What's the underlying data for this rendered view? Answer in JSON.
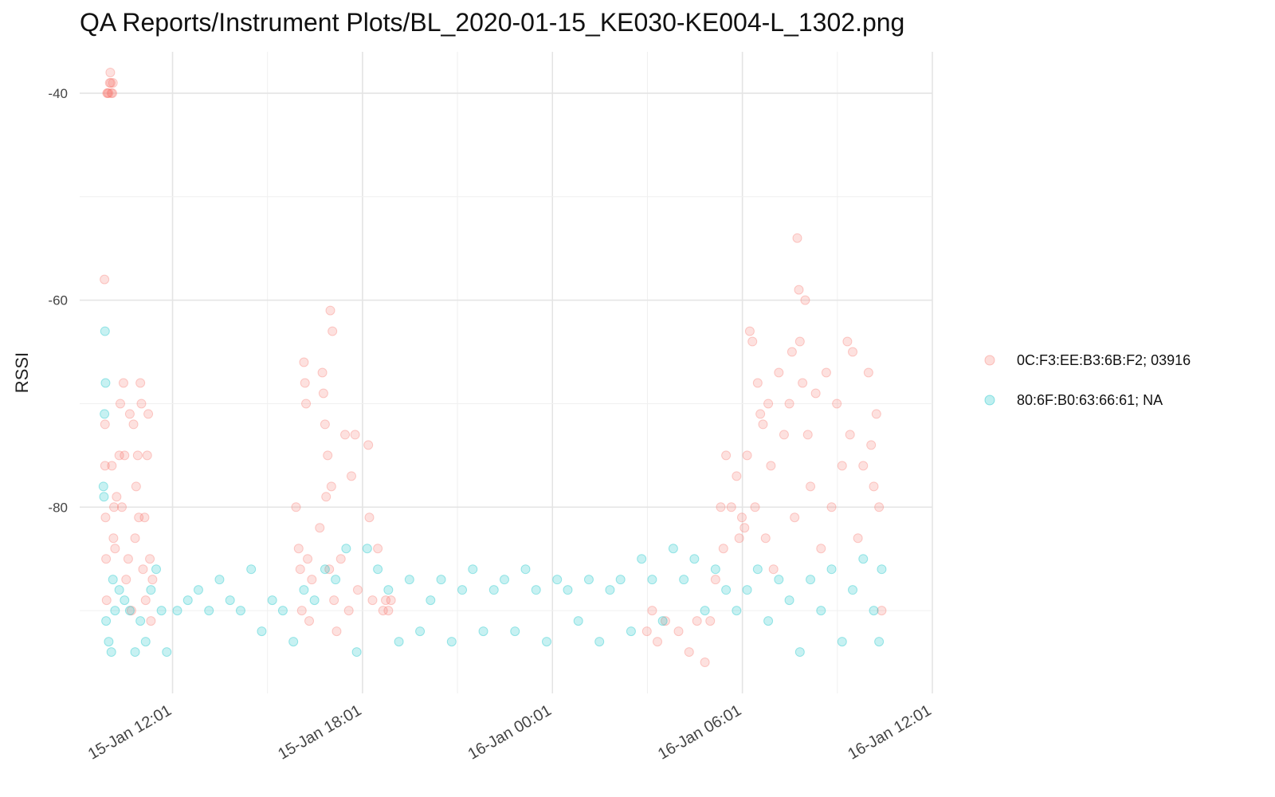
{
  "title": "QA Reports/Instrument Plots/BL_2020-01-15_KE030-KE004-L_1302.png",
  "chart_data": {
    "type": "scatter",
    "title": "QA Reports/Instrument Plots/BL_2020-01-15_KE030-KE004-L_1302.png",
    "xlabel": "",
    "ylabel": "RSSI",
    "x_tick_labels": [
      "15-Jan 12:01",
      "15-Jan 18:01",
      "16-Jan 00:01",
      "16-Jan 06:01",
      "16-Jan 12:01"
    ],
    "x_tick_values": [
      "2020-01-15 12:01",
      "2020-01-15 18:01",
      "2020-01-16 00:01",
      "2020-01-16 06:01",
      "2020-01-16 12:01"
    ],
    "y_ticks": [
      -40,
      -60,
      -80
    ],
    "xlim": [
      "2020-01-15 09:05",
      "2020-01-16 12:01"
    ],
    "ylim": [
      -98,
      -36
    ],
    "grid": true,
    "legend_position": "right",
    "series": [
      {
        "name": "0C:F3:EE:B3:6B:F2; 03916",
        "color": "#F8766D",
        "points": [
          [
            "2020-01-15 09:52",
            -58
          ],
          [
            "2020-01-15 09:53",
            -72
          ],
          [
            "2020-01-15 09:53",
            -76
          ],
          [
            "2020-01-15 09:54",
            -81
          ],
          [
            "2020-01-15 09:55",
            -85
          ],
          [
            "2020-01-15 09:56",
            -89
          ],
          [
            "2020-01-15 09:57",
            -40
          ],
          [
            "2020-01-15 09:58",
            -40
          ],
          [
            "2020-01-15 10:00",
            -40
          ],
          [
            "2020-01-15 10:02",
            -39
          ],
          [
            "2020-01-15 10:03",
            -38
          ],
          [
            "2020-01-15 10:04",
            -39
          ],
          [
            "2020-01-15 10:05",
            -40
          ],
          [
            "2020-01-15 10:07",
            -40
          ],
          [
            "2020-01-15 10:08",
            -39
          ],
          [
            "2020-01-15 10:06",
            -76
          ],
          [
            "2020-01-15 10:09",
            -83
          ],
          [
            "2020-01-15 10:10",
            -80
          ],
          [
            "2020-01-15 10:12",
            -84
          ],
          [
            "2020-01-15 10:15",
            -79
          ],
          [
            "2020-01-15 10:20",
            -75
          ],
          [
            "2020-01-15 10:22",
            -70
          ],
          [
            "2020-01-15 10:25",
            -80
          ],
          [
            "2020-01-15 10:28",
            -68
          ],
          [
            "2020-01-15 10:30",
            -75
          ],
          [
            "2020-01-15 10:33",
            -87
          ],
          [
            "2020-01-15 10:37",
            -85
          ],
          [
            "2020-01-15 10:40",
            -71
          ],
          [
            "2020-01-15 10:43",
            -90
          ],
          [
            "2020-01-15 10:47",
            -72
          ],
          [
            "2020-01-15 10:50",
            -83
          ],
          [
            "2020-01-15 10:52",
            -78
          ],
          [
            "2020-01-15 10:55",
            -75
          ],
          [
            "2020-01-15 10:57",
            -81
          ],
          [
            "2020-01-15 11:00",
            -68
          ],
          [
            "2020-01-15 11:02",
            -70
          ],
          [
            "2020-01-15 11:05",
            -86
          ],
          [
            "2020-01-15 11:08",
            -81
          ],
          [
            "2020-01-15 11:10",
            -89
          ],
          [
            "2020-01-15 11:13",
            -75
          ],
          [
            "2020-01-15 11:15",
            -71
          ],
          [
            "2020-01-15 11:18",
            -85
          ],
          [
            "2020-01-15 11:20",
            -91
          ],
          [
            "2020-01-15 11:23",
            -87
          ],
          [
            "2020-01-15 15:55",
            -80
          ],
          [
            "2020-01-15 16:00",
            -84
          ],
          [
            "2020-01-15 16:03",
            -86
          ],
          [
            "2020-01-15 16:06",
            -90
          ],
          [
            "2020-01-15 16:10",
            -66
          ],
          [
            "2020-01-15 16:12",
            -68
          ],
          [
            "2020-01-15 16:14",
            -70
          ],
          [
            "2020-01-15 16:17",
            -85
          ],
          [
            "2020-01-15 16:20",
            -91
          ],
          [
            "2020-01-15 16:25",
            -87
          ],
          [
            "2020-01-15 16:40",
            -82
          ],
          [
            "2020-01-15 16:45",
            -67
          ],
          [
            "2020-01-15 16:47",
            -69
          ],
          [
            "2020-01-15 16:50",
            -72
          ],
          [
            "2020-01-15 16:52",
            -79
          ],
          [
            "2020-01-15 16:55",
            -75
          ],
          [
            "2020-01-15 16:58",
            -86
          ],
          [
            "2020-01-15 17:00",
            -61
          ],
          [
            "2020-01-15 17:02",
            -78
          ],
          [
            "2020-01-15 17:04",
            -63
          ],
          [
            "2020-01-15 17:07",
            -89
          ],
          [
            "2020-01-15 17:12",
            -92
          ],
          [
            "2020-01-15 17:20",
            -85
          ],
          [
            "2020-01-15 17:28",
            -73
          ],
          [
            "2020-01-15 17:35",
            -90
          ],
          [
            "2020-01-15 17:40",
            -77
          ],
          [
            "2020-01-15 17:47",
            -73
          ],
          [
            "2020-01-15 17:52",
            -88
          ],
          [
            "2020-01-15 18:12",
            -74
          ],
          [
            "2020-01-15 18:14",
            -81
          ],
          [
            "2020-01-15 18:20",
            -89
          ],
          [
            "2020-01-15 18:30",
            -84
          ],
          [
            "2020-01-15 18:40",
            -90
          ],
          [
            "2020-01-15 18:45",
            -89
          ],
          [
            "2020-01-15 18:50",
            -90
          ],
          [
            "2020-01-15 18:55",
            -89
          ],
          [
            "2020-01-16 03:00",
            -92
          ],
          [
            "2020-01-16 03:10",
            -90
          ],
          [
            "2020-01-16 03:20",
            -93
          ],
          [
            "2020-01-16 03:35",
            -91
          ],
          [
            "2020-01-16 04:00",
            -92
          ],
          [
            "2020-01-16 04:20",
            -94
          ],
          [
            "2020-01-16 04:35",
            -91
          ],
          [
            "2020-01-16 04:50",
            -95
          ],
          [
            "2020-01-16 05:00",
            -91
          ],
          [
            "2020-01-16 05:10",
            -87
          ],
          [
            "2020-01-16 05:20",
            -80
          ],
          [
            "2020-01-16 05:25",
            -84
          ],
          [
            "2020-01-16 05:30",
            -75
          ],
          [
            "2020-01-16 05:40",
            -80
          ],
          [
            "2020-01-16 05:50",
            -77
          ],
          [
            "2020-01-16 05:55",
            -83
          ],
          [
            "2020-01-16 06:00",
            -81
          ],
          [
            "2020-01-16 06:05",
            -82
          ],
          [
            "2020-01-16 06:10",
            -75
          ],
          [
            "2020-01-16 06:15",
            -63
          ],
          [
            "2020-01-16 06:20",
            -64
          ],
          [
            "2020-01-16 06:25",
            -80
          ],
          [
            "2020-01-16 06:30",
            -68
          ],
          [
            "2020-01-16 06:35",
            -71
          ],
          [
            "2020-01-16 06:40",
            -72
          ],
          [
            "2020-01-16 06:45",
            -83
          ],
          [
            "2020-01-16 06:50",
            -70
          ],
          [
            "2020-01-16 06:55",
            -76
          ],
          [
            "2020-01-16 07:00",
            -86
          ],
          [
            "2020-01-16 07:10",
            -67
          ],
          [
            "2020-01-16 07:20",
            -73
          ],
          [
            "2020-01-16 07:30",
            -70
          ],
          [
            "2020-01-16 07:35",
            -65
          ],
          [
            "2020-01-16 07:40",
            -81
          ],
          [
            "2020-01-16 07:45",
            -54
          ],
          [
            "2020-01-16 07:48",
            -59
          ],
          [
            "2020-01-16 07:50",
            -64
          ],
          [
            "2020-01-16 07:55",
            -68
          ],
          [
            "2020-01-16 08:00",
            -60
          ],
          [
            "2020-01-16 08:05",
            -73
          ],
          [
            "2020-01-16 08:10",
            -78
          ],
          [
            "2020-01-16 08:20",
            -69
          ],
          [
            "2020-01-16 08:30",
            -84
          ],
          [
            "2020-01-16 08:40",
            -67
          ],
          [
            "2020-01-16 08:50",
            -80
          ],
          [
            "2020-01-16 09:00",
            -70
          ],
          [
            "2020-01-16 09:10",
            -76
          ],
          [
            "2020-01-16 09:20",
            -64
          ],
          [
            "2020-01-16 09:25",
            -73
          ],
          [
            "2020-01-16 09:30",
            -65
          ],
          [
            "2020-01-16 09:40",
            -83
          ],
          [
            "2020-01-16 09:50",
            -76
          ],
          [
            "2020-01-16 10:00",
            -67
          ],
          [
            "2020-01-16 10:05",
            -74
          ],
          [
            "2020-01-16 10:10",
            -78
          ],
          [
            "2020-01-16 10:15",
            -71
          ],
          [
            "2020-01-16 10:20",
            -80
          ],
          [
            "2020-01-16 10:25",
            -90
          ]
        ]
      },
      {
        "name": "80:6F:B0:63:66:61; NA",
        "color": "#00BFC4",
        "points": [
          [
            "2020-01-15 09:50",
            -78
          ],
          [
            "2020-01-15 09:51",
            -79
          ],
          [
            "2020-01-15 09:52",
            -71
          ],
          [
            "2020-01-15 09:53",
            -63
          ],
          [
            "2020-01-15 09:54",
            -68
          ],
          [
            "2020-01-15 09:55",
            -91
          ],
          [
            "2020-01-15 10:00",
            -93
          ],
          [
            "2020-01-15 10:05",
            -94
          ],
          [
            "2020-01-15 10:08",
            -87
          ],
          [
            "2020-01-15 10:12",
            -90
          ],
          [
            "2020-01-15 10:20",
            -88
          ],
          [
            "2020-01-15 10:30",
            -89
          ],
          [
            "2020-01-15 10:40",
            -90
          ],
          [
            "2020-01-15 10:50",
            -94
          ],
          [
            "2020-01-15 11:00",
            -91
          ],
          [
            "2020-01-15 11:10",
            -93
          ],
          [
            "2020-01-15 11:20",
            -88
          ],
          [
            "2020-01-15 11:30",
            -86
          ],
          [
            "2020-01-15 11:40",
            -90
          ],
          [
            "2020-01-15 11:50",
            -94
          ],
          [
            "2020-01-15 12:10",
            -90
          ],
          [
            "2020-01-15 12:30",
            -89
          ],
          [
            "2020-01-15 12:50",
            -88
          ],
          [
            "2020-01-15 13:10",
            -90
          ],
          [
            "2020-01-15 13:30",
            -87
          ],
          [
            "2020-01-15 13:50",
            -89
          ],
          [
            "2020-01-15 14:10",
            -90
          ],
          [
            "2020-01-15 14:30",
            -86
          ],
          [
            "2020-01-15 14:50",
            -92
          ],
          [
            "2020-01-15 15:10",
            -89
          ],
          [
            "2020-01-15 15:30",
            -90
          ],
          [
            "2020-01-15 15:50",
            -93
          ],
          [
            "2020-01-15 16:10",
            -88
          ],
          [
            "2020-01-15 16:30",
            -89
          ],
          [
            "2020-01-15 16:50",
            -86
          ],
          [
            "2020-01-15 17:10",
            -87
          ],
          [
            "2020-01-15 17:30",
            -84
          ],
          [
            "2020-01-15 17:50",
            -94
          ],
          [
            "2020-01-15 18:10",
            -84
          ],
          [
            "2020-01-15 18:30",
            -86
          ],
          [
            "2020-01-15 18:50",
            -88
          ],
          [
            "2020-01-15 19:10",
            -93
          ],
          [
            "2020-01-15 19:30",
            -87
          ],
          [
            "2020-01-15 19:50",
            -92
          ],
          [
            "2020-01-15 20:10",
            -89
          ],
          [
            "2020-01-15 20:30",
            -87
          ],
          [
            "2020-01-15 20:50",
            -93
          ],
          [
            "2020-01-15 21:10",
            -88
          ],
          [
            "2020-01-15 21:30",
            -86
          ],
          [
            "2020-01-15 21:50",
            -92
          ],
          [
            "2020-01-15 22:10",
            -88
          ],
          [
            "2020-01-15 22:30",
            -87
          ],
          [
            "2020-01-15 22:50",
            -92
          ],
          [
            "2020-01-15 23:10",
            -86
          ],
          [
            "2020-01-15 23:30",
            -88
          ],
          [
            "2020-01-15 23:50",
            -93
          ],
          [
            "2020-01-16 00:10",
            -87
          ],
          [
            "2020-01-16 00:30",
            -88
          ],
          [
            "2020-01-16 00:50",
            -91
          ],
          [
            "2020-01-16 01:10",
            -87
          ],
          [
            "2020-01-16 01:30",
            -93
          ],
          [
            "2020-01-16 01:50",
            -88
          ],
          [
            "2020-01-16 02:10",
            -87
          ],
          [
            "2020-01-16 02:30",
            -92
          ],
          [
            "2020-01-16 02:50",
            -85
          ],
          [
            "2020-01-16 03:10",
            -87
          ],
          [
            "2020-01-16 03:30",
            -91
          ],
          [
            "2020-01-16 03:50",
            -84
          ],
          [
            "2020-01-16 04:10",
            -87
          ],
          [
            "2020-01-16 04:30",
            -85
          ],
          [
            "2020-01-16 04:50",
            -90
          ],
          [
            "2020-01-16 05:10",
            -86
          ],
          [
            "2020-01-16 05:30",
            -88
          ],
          [
            "2020-01-16 05:50",
            -90
          ],
          [
            "2020-01-16 06:10",
            -88
          ],
          [
            "2020-01-16 06:30",
            -86
          ],
          [
            "2020-01-16 06:50",
            -91
          ],
          [
            "2020-01-16 07:10",
            -87
          ],
          [
            "2020-01-16 07:30",
            -89
          ],
          [
            "2020-01-16 07:50",
            -94
          ],
          [
            "2020-01-16 08:10",
            -87
          ],
          [
            "2020-01-16 08:30",
            -90
          ],
          [
            "2020-01-16 08:50",
            -86
          ],
          [
            "2020-01-16 09:10",
            -93
          ],
          [
            "2020-01-16 09:30",
            -88
          ],
          [
            "2020-01-16 09:50",
            -85
          ],
          [
            "2020-01-16 10:10",
            -90
          ],
          [
            "2020-01-16 10:20",
            -93
          ],
          [
            "2020-01-16 10:25",
            -86
          ]
        ]
      }
    ]
  }
}
